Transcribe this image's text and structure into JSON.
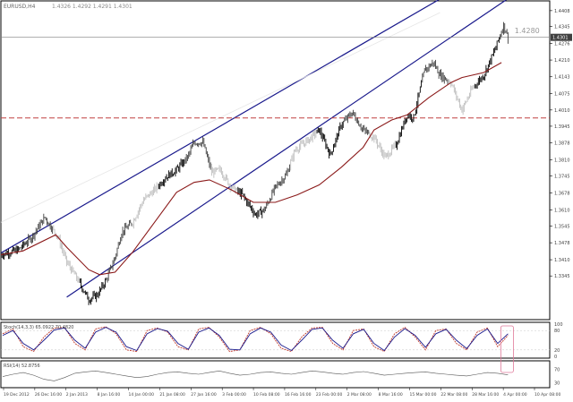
{
  "header": {
    "symbol_text": "EURUSD,H4",
    "ohlc_text": "1.4326 1.4292 1.4291 1.4301"
  },
  "chart_data": [
    {
      "type": "candlestick",
      "panel": "price",
      "title": "",
      "xlabel": "",
      "ylabel": "",
      "ylim": [
        1.317,
        1.4447
      ],
      "grid": false,
      "y_ticks": [
        "1.4480",
        "1.4408",
        "1.4345",
        "1.4276",
        "1.4210",
        "1.4143",
        "1.4075",
        "1.4010",
        "1.3945",
        "1.3878",
        "1.3810",
        "1.3745",
        "1.3678",
        "1.3610",
        "1.3545",
        "1.3478",
        "1.3410",
        "1.3345"
      ],
      "current_price": "1.4301",
      "annotation": "1.4280",
      "horizontal_levels": [
        {
          "value": 1.4301,
          "style": "solid",
          "color": "#808080"
        },
        {
          "value": 1.3978,
          "style": "dashed",
          "color": "#c04040"
        }
      ],
      "channel_lines": [
        {
          "from": {
            "bar": 0,
            "price": 1.3437
          },
          "to": {
            "bar": 205,
            "price": 1.448
          },
          "color": "#1a1a8c"
        },
        {
          "from": {
            "bar": 30,
            "price": 1.326
          },
          "to": {
            "bar": 235,
            "price": 1.448
          },
          "color": "#1a1a8c"
        }
      ],
      "moving_average": {
        "color": "#8b1a1a",
        "points": [
          [
            0,
            1.343
          ],
          [
            10,
            1.3445
          ],
          [
            25,
            1.351
          ],
          [
            30,
            1.346
          ],
          [
            40,
            1.337
          ],
          [
            45,
            1.335
          ],
          [
            52,
            1.336
          ],
          [
            60,
            1.344
          ],
          [
            70,
            1.356
          ],
          [
            80,
            1.368
          ],
          [
            88,
            1.372
          ],
          [
            95,
            1.373
          ],
          [
            105,
            1.369
          ],
          [
            115,
            1.364
          ],
          [
            125,
            1.364
          ],
          [
            135,
            1.367
          ],
          [
            145,
            1.371
          ],
          [
            155,
            1.378
          ],
          [
            165,
            1.386
          ],
          [
            170,
            1.393
          ],
          [
            178,
            1.397
          ],
          [
            185,
            1.399
          ],
          [
            195,
            1.406
          ],
          [
            205,
            1.412
          ],
          [
            210,
            1.414
          ],
          [
            220,
            1.416
          ],
          [
            228,
            1.42
          ]
        ]
      },
      "close_series": {
        "points": [
          [
            0,
            1.343
          ],
          [
            8,
            1.345
          ],
          [
            14,
            1.35
          ],
          [
            20,
            1.358
          ],
          [
            26,
            1.35
          ],
          [
            30,
            1.34
          ],
          [
            35,
            1.333
          ],
          [
            40,
            1.325
          ],
          [
            44,
            1.327
          ],
          [
            48,
            1.333
          ],
          [
            52,
            1.342
          ],
          [
            55,
            1.352
          ],
          [
            60,
            1.356
          ],
          [
            65,
            1.365
          ],
          [
            70,
            1.369
          ],
          [
            75,
            1.374
          ],
          [
            80,
            1.377
          ],
          [
            85,
            1.382
          ],
          [
            88,
            1.388
          ],
          [
            92,
            1.388
          ],
          [
            96,
            1.376
          ],
          [
            100,
            1.377
          ],
          [
            105,
            1.37
          ],
          [
            110,
            1.367
          ],
          [
            116,
            1.359
          ],
          [
            120,
            1.361
          ],
          [
            125,
            1.37
          ],
          [
            130,
            1.375
          ],
          [
            134,
            1.385
          ],
          [
            140,
            1.389
          ],
          [
            145,
            1.393
          ],
          [
            150,
            1.383
          ],
          [
            155,
            1.395
          ],
          [
            160,
            1.4
          ],
          [
            165,
            1.393
          ],
          [
            170,
            1.39
          ],
          [
            175,
            1.382
          ],
          [
            180,
            1.387
          ],
          [
            185,
            1.399
          ],
          [
            188,
            1.398
          ],
          [
            193,
            1.417
          ],
          [
            197,
            1.42
          ],
          [
            200,
            1.415
          ],
          [
            205,
            1.412
          ],
          [
            210,
            1.401
          ],
          [
            215,
            1.41
          ],
          [
            220,
            1.415
          ],
          [
            225,
            1.425
          ],
          [
            229,
            1.435
          ],
          [
            231,
            1.4301
          ]
        ]
      }
    },
    {
      "type": "line",
      "panel": "oscillator",
      "label": "Stoch(14,3,3) 65.0922 70.4820",
      "ylim": [
        0,
        100
      ],
      "y_ticks": [
        "100",
        "80",
        "20",
        "0"
      ],
      "series": [
        {
          "color": "#c0392b",
          "values": [
            70,
            85,
            30,
            15,
            60,
            88,
            90,
            40,
            20,
            85,
            92,
            70,
            20,
            15,
            80,
            88,
            75,
            30,
            20,
            85,
            90,
            60,
            15,
            20,
            80,
            90,
            70,
            25,
            15,
            60,
            88,
            90,
            40,
            20,
            80,
            85,
            30,
            15,
            70,
            90,
            60,
            20,
            80,
            85,
            40,
            20,
            75,
            88,
            30,
            65
          ]
        },
        {
          "color": "#1a1a8c",
          "values": [
            65,
            80,
            40,
            20,
            50,
            82,
            88,
            50,
            25,
            75,
            90,
            75,
            30,
            18,
            70,
            86,
            78,
            40,
            22,
            75,
            88,
            65,
            22,
            20,
            70,
            88,
            75,
            35,
            18,
            50,
            84,
            88,
            50,
            25,
            70,
            84,
            40,
            18,
            60,
            86,
            65,
            28,
            70,
            84,
            50,
            24,
            65,
            85,
            40,
            70
          ]
        }
      ]
    },
    {
      "type": "line",
      "panel": "indicator",
      "label": "RSI(14) 52.8756",
      "y_ticks": [
        "70",
        "30"
      ],
      "series": [
        {
          "color": "#555555",
          "values": [
            48,
            55,
            60,
            52,
            40,
            35,
            45,
            58,
            62,
            65,
            60,
            55,
            50,
            45,
            48,
            55,
            60,
            62,
            58,
            55,
            60,
            65,
            58,
            52,
            55,
            60,
            62,
            58,
            55,
            60,
            65,
            62,
            58,
            55,
            60,
            63,
            58,
            52,
            55,
            58,
            60,
            62,
            58,
            55,
            52,
            50,
            55,
            60,
            58,
            53
          ]
        }
      ]
    }
  ],
  "time_axis": {
    "labels": [
      "19 Dec 2012",
      "26 Dec 16:00",
      "2 Jan 2013",
      "8 Jan 16:00",
      "14 Jan 00:00",
      "21 Jan 08:00",
      "27 Jan 16:00",
      "3 Feb 00:00",
      "10 Feb 08:00",
      "16 Feb 16:00",
      "23 Feb 00:00",
      "2 Mar 08:00",
      "8 Mar 16:00",
      "15 Mar 00:00",
      "22 Mar 08:00",
      "28 Mar 16:00",
      "4 Apr 00:00",
      "10 Apr 08:00"
    ]
  }
}
